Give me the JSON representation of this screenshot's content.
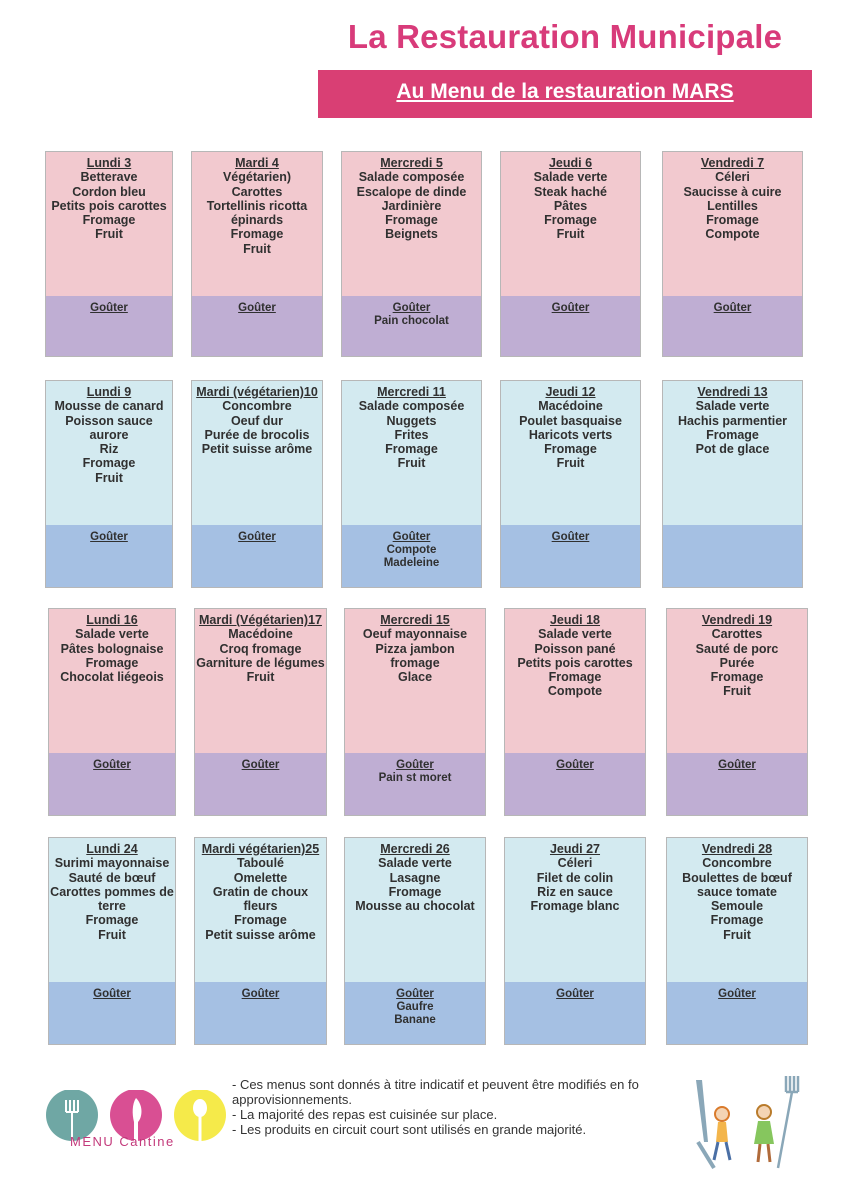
{
  "header": {
    "title": "La Restauration Municipale",
    "subtitle": "Au Menu de la restauration MARS"
  },
  "colors": {
    "title": "#d83b7a",
    "banner": "#d93f74",
    "pink": "#f2c9cf",
    "lavender": "#bfaed3",
    "lightblue": "#d3eaf0",
    "blue": "#a5c0e3"
  },
  "weeks": [
    {
      "days": [
        {
          "day": "Lundi 3",
          "dishes": [
            "Betterave",
            "Cordon bleu",
            "Petits pois carottes",
            "Fromage",
            "Fruit"
          ],
          "gouter": "Goûter",
          "gouter_items": []
        },
        {
          "day": "Mardi  4",
          "dishes": [
            "Végétarien)",
            "Carottes",
            "Tortellinis ricotta",
            "épinards",
            "Fromage",
            "Fruit"
          ],
          "gouter": "Goûter",
          "gouter_items": []
        },
        {
          "day": "Mercredi 5",
          "dishes": [
            "Salade composée",
            "Escalope de dinde",
            "Jardinière",
            "Fromage",
            "Beignets"
          ],
          "gouter": "Goûter",
          "gouter_items": [
            "Pain chocolat"
          ]
        },
        {
          "day": "Jeudi 6",
          "dishes": [
            "Salade verte",
            "Steak haché",
            "Pâtes",
            "Fromage",
            "Fruit"
          ],
          "gouter": "Goûter",
          "gouter_items": []
        },
        {
          "day": "Vendredi 7",
          "dishes": [
            "Céleri",
            "Saucisse à cuire",
            "Lentilles",
            "Fromage",
            "Compote"
          ],
          "gouter": "Goûter",
          "gouter_items": []
        }
      ]
    },
    {
      "days": [
        {
          "day": "Lundi 9",
          "dishes": [
            "Mousse de canard",
            "Poisson sauce aurore",
            "Riz",
            "Fromage",
            "Fruit"
          ],
          "gouter": "Goûter",
          "gouter_items": []
        },
        {
          "day": "Mardi  (végétarien)10",
          "dishes": [
            "Concombre",
            "Oeuf dur",
            "Purée de brocolis",
            "Petit suisse arôme"
          ],
          "gouter": "Goûter",
          "gouter_items": []
        },
        {
          "day": "Mercredi 11",
          "dishes": [
            "Salade composée",
            "Nuggets",
            "Frites",
            "Fromage",
            "Fruit"
          ],
          "gouter": "Goûter",
          "gouter_items": [
            "Compote",
            "Madeleine"
          ]
        },
        {
          "day": "Jeudi 12",
          "dishes": [
            "Macédoine",
            "Poulet basquaise",
            "Haricots verts",
            "Fromage",
            "Fruit"
          ],
          "gouter": "Goûter",
          "gouter_items": []
        },
        {
          "day": "Vendredi 13",
          "dishes": [
            "Salade verte",
            "Hachis parmentier",
            "Fromage",
            "Pot de glace"
          ],
          "gouter": "",
          "gouter_items": []
        }
      ]
    },
    {
      "days": [
        {
          "day": "Lundi 16",
          "dishes": [
            "Salade verte",
            "Pâtes bolognaise",
            "Fromage",
            "Chocolat liégeois"
          ],
          "gouter": "Goûter",
          "gouter_items": []
        },
        {
          "day": "Mardi (Végétarien)17",
          "dishes": [
            "Macédoine",
            "Croq fromage",
            "Garniture de légumes",
            "Fruit"
          ],
          "gouter": "Goûter",
          "gouter_items": []
        },
        {
          "day": "Mercredi 15",
          "dishes": [
            "Oeuf mayonnaise",
            "Pizza jambon",
            "fromage",
            "Glace"
          ],
          "gouter": "Goûter",
          "gouter_items": [
            "Pain st moret"
          ]
        },
        {
          "day": "Jeudi 18",
          "dishes": [
            "Salade verte",
            "Poisson pané",
            "Petits pois carottes",
            "Fromage",
            "Compote"
          ],
          "gouter": "Goûter",
          "gouter_items": []
        },
        {
          "day": "Vendredi 19",
          "dishes": [
            "Carottes",
            "Sauté de porc",
            "Purée",
            "Fromage",
            "Fruit"
          ],
          "gouter": "Goûter",
          "gouter_items": []
        }
      ]
    },
    {
      "days": [
        {
          "day": "Lundi 24",
          "dishes": [
            "Surimi mayonnaise",
            "Sauté de bœuf",
            "Carottes pommes de",
            "terre",
            "Fromage",
            "Fruit"
          ],
          "gouter": "Goûter",
          "gouter_items": []
        },
        {
          "day": "Mardi  végétarien)25",
          "dishes": [
            "Taboulé",
            "Omelette",
            "Gratin de choux fleurs",
            "Fromage",
            "Petit suisse arôme"
          ],
          "gouter": "Goûter",
          "gouter_items": []
        },
        {
          "day": "Mercredi 26",
          "dishes": [
            "Salade verte",
            "Lasagne",
            "Fromage",
            "Mousse au chocolat"
          ],
          "gouter": "Goûter",
          "gouter_items": [
            "Gaufre",
            "Banane"
          ]
        },
        {
          "day": "Jeudi 27",
          "dishes": [
            "Céleri",
            "Filet de colin",
            "Riz en sauce",
            "Fromage blanc"
          ],
          "gouter": "Goûter",
          "gouter_items": []
        },
        {
          "day": "Vendredi 28",
          "dishes": [
            "Concombre",
            "Boulettes de bœuf",
            "sauce tomate",
            "Semoule",
            "Fromage",
            "Fruit"
          ],
          "gouter": "Goûter",
          "gouter_items": []
        }
      ]
    }
  ],
  "footer": {
    "notes": [
      "- Ces menus sont donnés à titre indicatif et peuvent être modifiés en fo",
      "approvisionnements.",
      "- La majorité des repas est cuisinée sur place.",
      "- Les produits en circuit court sont utilisés en grande majorité."
    ],
    "logo_text": "MENU  Cantine",
    "logo_colors": [
      "#6fa7a4",
      "#d94f93",
      "#f5ea4a"
    ]
  }
}
